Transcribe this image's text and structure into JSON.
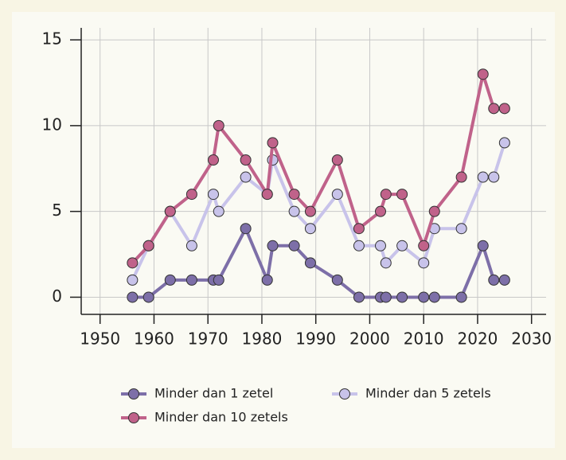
{
  "chart_data": {
    "type": "line",
    "x": [
      1956,
      1959,
      1963,
      1967,
      1971,
      1972,
      1977,
      1981,
      1982,
      1986,
      1989,
      1994,
      1998,
      2002,
      2003,
      2006,
      2010,
      2012,
      2017,
      2021,
      2023,
      2025
    ],
    "series": [
      {
        "name": "Minder dan 1 zetel",
        "color": "#7d6fa8",
        "values": [
          0,
          0,
          1,
          1,
          1,
          1,
          4,
          1,
          3,
          3,
          2,
          1,
          0,
          0,
          0,
          0,
          0,
          0,
          0,
          3,
          1,
          1
        ]
      },
      {
        "name": "Minder dan 5 zetels",
        "color": "#c8c3ea",
        "values": [
          1,
          3,
          5,
          3,
          6,
          5,
          7,
          6,
          8,
          5,
          4,
          6,
          3,
          3,
          2,
          3,
          2,
          4,
          4,
          7,
          7,
          9
        ]
      },
      {
        "name": "Minder dan 10 zetels",
        "color": "#c0628a",
        "values": [
          2,
          3,
          5,
          6,
          8,
          10,
          8,
          6,
          9,
          6,
          5,
          8,
          4,
          5,
          6,
          6,
          3,
          5,
          7,
          13,
          11,
          11
        ]
      }
    ],
    "xlim": [
      1946.5,
      2032.7
    ],
    "xticks": [
      1950,
      1960,
      1970,
      1980,
      1990,
      2000,
      2010,
      2020,
      2030
    ],
    "ylim": [
      -1,
      15.7
    ],
    "yticks": [
      0,
      5,
      10,
      15
    ],
    "grid": true,
    "legend": "bottom"
  }
}
